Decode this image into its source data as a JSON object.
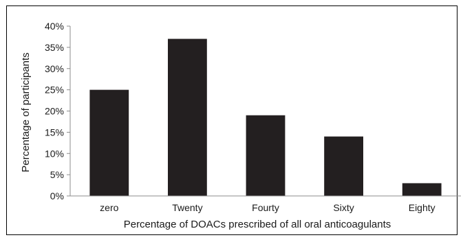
{
  "chart_data": {
    "type": "bar",
    "title": "",
    "xlabel": "Percentage of DOACs prescribed of all oral anticoagulants",
    "ylabel": "Percentage  of participants",
    "categories": [
      "zero",
      "Twenty",
      "Fourty",
      "Sixty",
      "Eighty"
    ],
    "values": [
      25,
      37,
      19,
      14,
      3
    ],
    "ylim": [
      0,
      40
    ],
    "yticks": [
      "0%",
      "5%",
      "10%",
      "15%",
      "20%",
      "25%",
      "30%",
      "35%",
      "40%"
    ],
    "grid": false,
    "legend": "none",
    "bar_color": "#231f20",
    "axis_color": "#8c8c8c"
  }
}
